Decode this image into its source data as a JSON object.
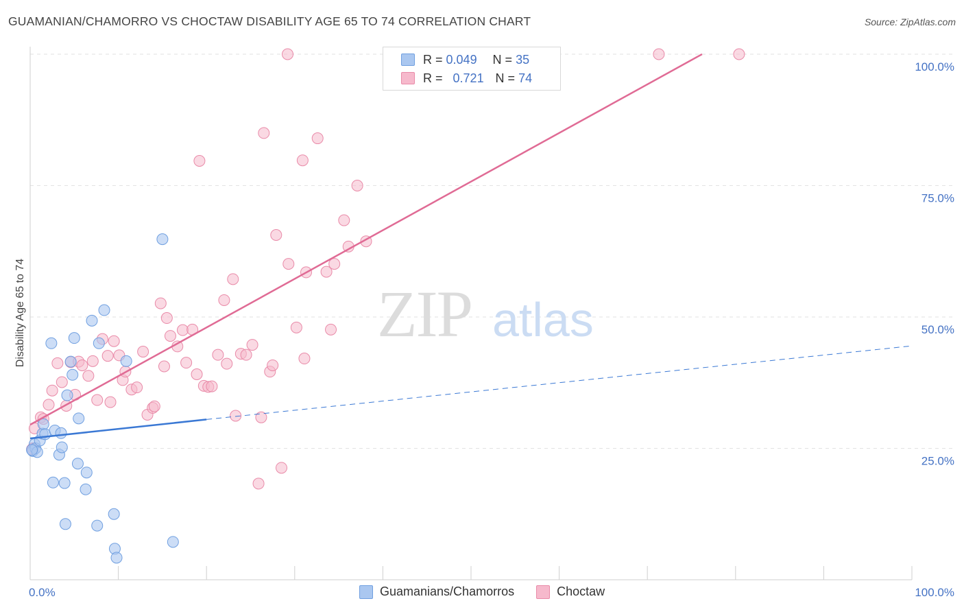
{
  "title": "GUAMANIAN/CHAMORRO VS CHOCTAW DISABILITY AGE 65 TO 74 CORRELATION CHART",
  "source": "Source: ZipAtlas.com",
  "watermark": {
    "zip": "ZIP",
    "atlas": "atlas"
  },
  "legend": {
    "rows": [
      {
        "r_label": "R =",
        "r_value": "0.049",
        "n_label": "N =",
        "n_value": "35"
      },
      {
        "r_label": "R =",
        "r_value": "0.721",
        "n_label": "N =",
        "n_value": "74"
      }
    ]
  },
  "bottom_legend": {
    "series1": "Guamanians/Chamorros",
    "series2": "Choctaw"
  },
  "colors": {
    "blue_fill": "#aac7f0",
    "blue_stroke": "#6f9fe0",
    "blue_line": "#3a78d4",
    "pink_fill": "#f6b9cc",
    "pink_stroke": "#e98aa8",
    "pink_line": "#e06b95",
    "tick": "#4472c4"
  },
  "chart_data": {
    "type": "scatter",
    "title": "GUAMANIAN/CHAMORRO VS CHOCTAW DISABILITY AGE 65 TO 74 CORRELATION CHART",
    "xlabel": "",
    "ylabel": "Disability Age 65 to 74",
    "xlim": [
      0,
      100
    ],
    "ylim": [
      0,
      100
    ],
    "x_tick_labels": [
      "0.0%",
      "100.0%"
    ],
    "y_ticks": [
      {
        "value": 25,
        "label": "25.0%"
      },
      {
        "value": 50,
        "label": "50.0%"
      },
      {
        "value": 75,
        "label": "75.0%"
      },
      {
        "value": 100,
        "label": "100.0%"
      }
    ],
    "series": [
      {
        "name": "Guamanians/Chamorros",
        "r": 0.049,
        "n": 35,
        "trend": {
          "x0": 0,
          "y0": 26.9,
          "x1": 20,
          "y1": 30.5,
          "dash_to_x": 100,
          "dash_to_y": 44.5
        },
        "points": [
          [
            0.3,
            24.5
          ],
          [
            0.5,
            25.8
          ],
          [
            0.6,
            25.0
          ],
          [
            0.8,
            24.3
          ],
          [
            1.1,
            26.5
          ],
          [
            1.4,
            27.8
          ],
          [
            1.5,
            29.6
          ],
          [
            1.7,
            27.7
          ],
          [
            2.4,
            45.0
          ],
          [
            2.6,
            18.5
          ],
          [
            2.8,
            28.4
          ],
          [
            3.3,
            23.8
          ],
          [
            3.5,
            27.9
          ],
          [
            3.6,
            25.2
          ],
          [
            3.9,
            18.4
          ],
          [
            4.0,
            10.6
          ],
          [
            4.2,
            35.1
          ],
          [
            4.6,
            41.5
          ],
          [
            4.8,
            39.0
          ],
          [
            5.0,
            46.0
          ],
          [
            5.4,
            22.1
          ],
          [
            5.5,
            30.7
          ],
          [
            6.3,
            17.2
          ],
          [
            6.4,
            20.4
          ],
          [
            7.0,
            49.3
          ],
          [
            7.6,
            10.3
          ],
          [
            7.8,
            45.0
          ],
          [
            8.4,
            51.3
          ],
          [
            9.5,
            12.5
          ],
          [
            9.6,
            5.9
          ],
          [
            9.8,
            4.2
          ],
          [
            10.9,
            41.6
          ],
          [
            15.0,
            64.8
          ],
          [
            16.2,
            7.2
          ],
          [
            0.2,
            24.7
          ]
        ]
      },
      {
        "name": "Choctaw",
        "r": 0.721,
        "n": 74,
        "trend": {
          "x0": 0,
          "y0": 29.5,
          "x1": 76.2,
          "y1": 100
        },
        "points": [
          [
            0.3,
            25.0
          ],
          [
            0.5,
            28.8
          ],
          [
            1.2,
            30.9
          ],
          [
            1.5,
            30.6
          ],
          [
            2.1,
            33.3
          ],
          [
            2.5,
            36.0
          ],
          [
            3.1,
            41.2
          ],
          [
            3.6,
            37.6
          ],
          [
            4.1,
            33.1
          ],
          [
            4.6,
            41.4
          ],
          [
            5.1,
            35.2
          ],
          [
            5.5,
            41.5
          ],
          [
            5.9,
            40.8
          ],
          [
            6.6,
            38.8
          ],
          [
            7.1,
            41.6
          ],
          [
            7.6,
            34.2
          ],
          [
            8.2,
            45.8
          ],
          [
            8.8,
            42.6
          ],
          [
            9.1,
            33.8
          ],
          [
            9.5,
            45.4
          ],
          [
            10.1,
            42.7
          ],
          [
            10.5,
            38.0
          ],
          [
            10.8,
            39.6
          ],
          [
            11.5,
            36.2
          ],
          [
            12.1,
            36.6
          ],
          [
            12.8,
            43.4
          ],
          [
            13.3,
            31.4
          ],
          [
            13.9,
            32.7
          ],
          [
            14.1,
            33.0
          ],
          [
            14.8,
            52.6
          ],
          [
            15.2,
            40.6
          ],
          [
            15.5,
            49.8
          ],
          [
            15.9,
            46.4
          ],
          [
            16.7,
            44.4
          ],
          [
            17.3,
            47.5
          ],
          [
            17.7,
            41.3
          ],
          [
            18.4,
            47.6
          ],
          [
            18.9,
            39.1
          ],
          [
            19.2,
            79.7
          ],
          [
            19.7,
            36.9
          ],
          [
            20.2,
            36.7
          ],
          [
            20.6,
            36.8
          ],
          [
            21.3,
            42.8
          ],
          [
            22.0,
            53.2
          ],
          [
            22.3,
            41.1
          ],
          [
            23.0,
            57.2
          ],
          [
            23.3,
            31.2
          ],
          [
            23.9,
            43.0
          ],
          [
            24.5,
            42.8
          ],
          [
            25.2,
            44.7
          ],
          [
            25.9,
            18.3
          ],
          [
            26.2,
            30.9
          ],
          [
            26.5,
            85.0
          ],
          [
            27.2,
            39.6
          ],
          [
            27.5,
            40.8
          ],
          [
            27.9,
            65.6
          ],
          [
            28.5,
            21.3
          ],
          [
            29.3,
            60.1
          ],
          [
            30.2,
            48.0
          ],
          [
            31.1,
            42.1
          ],
          [
            31.3,
            58.5
          ],
          [
            32.6,
            84.0
          ],
          [
            33.6,
            58.6
          ],
          [
            34.1,
            47.6
          ],
          [
            34.5,
            60.1
          ],
          [
            35.6,
            68.4
          ],
          [
            36.1,
            63.4
          ],
          [
            37.1,
            75.0
          ],
          [
            38.1,
            64.4
          ],
          [
            30.9,
            79.8
          ],
          [
            29.2,
            100.0
          ],
          [
            71.3,
            100.0
          ],
          [
            80.4,
            100.0
          ],
          [
            0.2,
            24.8
          ]
        ]
      }
    ]
  }
}
